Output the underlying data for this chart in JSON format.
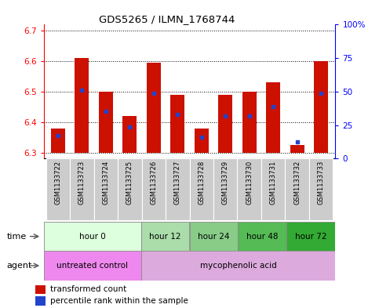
{
  "title": "GDS5265 / ILMN_1768744",
  "samples": [
    "GSM1133722",
    "GSM1133723",
    "GSM1133724",
    "GSM1133725",
    "GSM1133726",
    "GSM1133727",
    "GSM1133728",
    "GSM1133729",
    "GSM1133730",
    "GSM1133731",
    "GSM1133732",
    "GSM1133733"
  ],
  "bar_bottom": 6.3,
  "bar_tops": [
    6.38,
    6.61,
    6.5,
    6.42,
    6.595,
    6.49,
    6.38,
    6.49,
    6.5,
    6.53,
    6.325,
    6.6
  ],
  "blue_positions": [
    6.355,
    6.505,
    6.435,
    6.385,
    6.495,
    6.425,
    6.35,
    6.42,
    6.42,
    6.45,
    6.335,
    6.495
  ],
  "ylim_left": [
    6.28,
    6.72
  ],
  "ylim_right": [
    0,
    100
  ],
  "yticks_left": [
    6.3,
    6.4,
    6.5,
    6.6,
    6.7
  ],
  "yticks_right": [
    0,
    25,
    50,
    75,
    100
  ],
  "ytick_labels_right": [
    "0",
    "25",
    "50",
    "75",
    "100%"
  ],
  "bar_color": "#cc1100",
  "blue_color": "#2244cc",
  "sample_bg": "#cccccc",
  "time_groups": [
    {
      "label": "hour 0",
      "start": 0,
      "end": 4,
      "color": "#ddffdd"
    },
    {
      "label": "hour 12",
      "start": 4,
      "end": 6,
      "color": "#aaddaa"
    },
    {
      "label": "hour 24",
      "start": 6,
      "end": 8,
      "color": "#88cc88"
    },
    {
      "label": "hour 48",
      "start": 8,
      "end": 10,
      "color": "#55bb55"
    },
    {
      "label": "hour 72",
      "start": 10,
      "end": 12,
      "color": "#33aa33"
    }
  ],
  "agent_groups": [
    {
      "label": "untreated control",
      "start": 0,
      "end": 4,
      "color": "#ee88ee"
    },
    {
      "label": "mycophenolic acid",
      "start": 4,
      "end": 12,
      "color": "#ddaadd"
    }
  ],
  "legend_red": "transformed count",
  "legend_blue": "percentile rank within the sample",
  "bar_width": 0.6
}
